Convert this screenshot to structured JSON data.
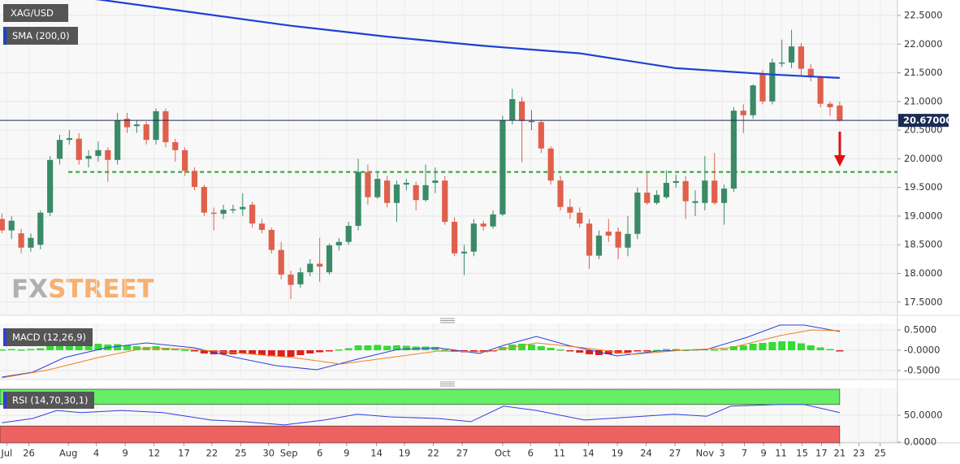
{
  "chart_data": [
    {
      "type": "candlestick",
      "title": "XAG/USD",
      "up_color": "#3a8a68",
      "down_color": "#e0604c",
      "open": [
        18.95,
        18.75,
        18.7,
        18.45,
        18.5,
        19.06,
        20.0,
        20.33,
        20.35,
        20.0,
        20.05,
        20.15,
        19.98,
        20.7,
        20.57,
        20.6,
        20.33,
        20.83,
        20.29,
        20.15,
        19.79,
        19.51,
        19.06,
        19.04,
        19.1,
        19.12,
        19.2,
        18.87,
        18.76,
        18.41,
        17.98,
        17.81,
        18.02,
        18.17,
        18.02,
        18.49,
        18.55,
        18.83,
        19.77,
        19.33,
        19.62,
        19.23,
        19.55,
        19.54,
        19.28,
        19.58,
        19.62,
        18.9,
        18.35,
        18.38,
        18.87,
        18.82,
        19.03,
        20.67,
        21.0,
        20.64,
        20.64,
        20.18,
        19.62,
        19.16,
        19.06,
        18.87,
        18.31,
        18.73,
        18.73,
        18.45,
        18.69,
        19.41,
        19.23,
        19.33,
        19.58,
        19.61,
        19.23,
        19.23,
        19.62,
        19.23,
        19.48,
        20.84,
        20.76,
        21.49,
        21.0,
        21.66,
        21.68,
        21.96,
        21.57,
        21.42,
        20.96,
        20.93
      ],
      "high": [
        19.05,
        19.0,
        18.78,
        18.7,
        19.1,
        20.05,
        20.42,
        20.5,
        20.45,
        20.15,
        20.3,
        20.2,
        20.8,
        20.8,
        20.68,
        20.65,
        20.88,
        20.88,
        20.35,
        20.2,
        19.85,
        19.55,
        19.15,
        19.2,
        19.2,
        19.4,
        19.25,
        18.95,
        18.8,
        18.55,
        18.05,
        18.1,
        18.25,
        18.62,
        18.52,
        18.62,
        18.9,
        20.0,
        19.9,
        19.75,
        19.7,
        19.62,
        19.65,
        19.6,
        19.9,
        19.85,
        19.7,
        18.98,
        18.5,
        18.95,
        18.92,
        19.1,
        20.75,
        21.22,
        21.08,
        20.85,
        20.68,
        20.22,
        19.7,
        19.3,
        19.15,
        18.95,
        18.75,
        18.95,
        18.8,
        19.0,
        19.5,
        19.75,
        19.45,
        19.8,
        19.72,
        19.7,
        19.45,
        20.05,
        20.1,
        19.55,
        20.9,
        20.95,
        21.3,
        21.55,
        21.75,
        22.08,
        22.25,
        22.02,
        21.65,
        21.45,
        21.0,
        21.0
      ],
      "low": [
        18.7,
        18.6,
        18.35,
        18.38,
        18.42,
        19.0,
        19.9,
        20.25,
        19.9,
        19.85,
        19.95,
        19.6,
        19.9,
        20.45,
        20.45,
        20.25,
        20.25,
        20.2,
        19.95,
        19.7,
        19.45,
        19.0,
        18.75,
        18.95,
        19.05,
        19.0,
        18.8,
        18.7,
        18.35,
        17.9,
        17.55,
        17.75,
        17.95,
        17.85,
        17.98,
        18.4,
        18.5,
        18.75,
        19.2,
        19.3,
        19.15,
        18.9,
        19.45,
        19.1,
        19.25,
        19.4,
        18.85,
        18.3,
        17.97,
        18.3,
        18.75,
        18.78,
        19.0,
        20.6,
        19.94,
        20.5,
        20.1,
        19.55,
        19.1,
        18.95,
        18.8,
        18.08,
        18.25,
        18.55,
        18.25,
        18.3,
        18.6,
        19.2,
        19.2,
        19.3,
        19.5,
        18.95,
        19.0,
        19.1,
        19.2,
        18.85,
        19.42,
        20.45,
        20.7,
        20.95,
        20.95,
        21.6,
        21.58,
        21.45,
        21.35,
        20.9,
        20.75,
        20.65
      ],
      "close": [
        18.75,
        18.92,
        18.45,
        18.62,
        19.06,
        19.98,
        20.33,
        20.36,
        19.98,
        20.05,
        20.15,
        19.98,
        20.67,
        20.55,
        20.6,
        20.33,
        20.83,
        20.29,
        20.15,
        19.79,
        19.51,
        19.06,
        19.04,
        19.11,
        19.12,
        19.16,
        18.87,
        18.76,
        18.41,
        17.98,
        17.8,
        18.02,
        18.17,
        18.12,
        18.49,
        18.55,
        18.83,
        19.77,
        19.33,
        19.65,
        19.23,
        19.55,
        19.58,
        19.28,
        19.54,
        19.62,
        18.9,
        18.35,
        18.38,
        18.87,
        18.82,
        19.03,
        20.67,
        21.04,
        20.66,
        20.66,
        20.18,
        19.62,
        19.16,
        19.06,
        18.87,
        18.31,
        18.66,
        18.66,
        18.45,
        18.69,
        19.41,
        19.23,
        19.37,
        19.58,
        19.61,
        19.26,
        19.26,
        19.62,
        19.23,
        19.48,
        20.84,
        20.76,
        21.28,
        21.0,
        21.68,
        21.68,
        21.96,
        21.57,
        21.42,
        20.96,
        20.9,
        20.67
      ],
      "lines": [
        {
          "name": "SMA (200,0)",
          "color": "#1f3fd6",
          "x": [
            0,
            10,
            20,
            30,
            40,
            50,
            60,
            70,
            80,
            87
          ],
          "values": [
            22.95,
            22.78,
            22.55,
            22.32,
            22.13,
            21.97,
            21.84,
            21.58,
            21.47,
            21.41
          ]
        }
      ],
      "hlines": [
        {
          "value": 19.77,
          "color": "#3aaa3a"
        }
      ],
      "last_price": {
        "value": 20.67,
        "label": "20.67000"
      },
      "watermark": [
        "FX",
        "STREET"
      ],
      "xlim": [
        -0.2,
        93
      ],
      "xticks": [
        {
          "value": 0.5,
          "label": "Jul"
        },
        {
          "value": 2.8,
          "label": "26"
        },
        {
          "value": 6.9,
          "label": "Aug"
        },
        {
          "value": 9.8,
          "label": "4"
        },
        {
          "value": 12.8,
          "label": "9"
        },
        {
          "value": 15.8,
          "label": "12"
        },
        {
          "value": 18.9,
          "label": "17"
        },
        {
          "value": 21.8,
          "label": "22"
        },
        {
          "value": 24.8,
          "label": "25"
        },
        {
          "value": 27.7,
          "label": "30"
        },
        {
          "value": 29.8,
          "label": "Sep"
        },
        {
          "value": 33.0,
          "label": "6"
        },
        {
          "value": 35.8,
          "label": "9"
        },
        {
          "value": 38.9,
          "label": "14"
        },
        {
          "value": 41.8,
          "label": "19"
        },
        {
          "value": 44.8,
          "label": "22"
        },
        {
          "value": 47.8,
          "label": "27"
        },
        {
          "value": 52.0,
          "label": "Oct"
        },
        {
          "value": 54.9,
          "label": "6"
        },
        {
          "value": 57.9,
          "label": "11"
        },
        {
          "value": 60.9,
          "label": "14"
        },
        {
          "value": 63.9,
          "label": "19"
        },
        {
          "value": 66.9,
          "label": "24"
        },
        {
          "value": 69.9,
          "label": "27"
        },
        {
          "value": 73.0,
          "label": "Nov"
        },
        {
          "value": 74.8,
          "label": "3"
        },
        {
          "value": 77.1,
          "label": "7"
        },
        {
          "value": 79.1,
          "label": "9"
        },
        {
          "value": 80.9,
          "label": "11"
        },
        {
          "value": 83.1,
          "label": "15"
        },
        {
          "value": 85.1,
          "label": "17"
        },
        {
          "value": 87.0,
          "label": "21"
        },
        {
          "value": 89.0,
          "label": "23"
        },
        {
          "value": 91.2,
          "label": "25"
        }
      ],
      "ylim": [
        17.27,
        22.77
      ],
      "yticks": [
        {
          "value": 17.5,
          "label": "17.5000"
        },
        {
          "value": 18.0,
          "label": "18.0000"
        },
        {
          "value": 18.5,
          "label": "18.5000"
        },
        {
          "value": 19.0,
          "label": "19.0000"
        },
        {
          "value": 19.5,
          "label": "19.5000"
        },
        {
          "value": 20.0,
          "label": "20.0000"
        },
        {
          "value": 20.5,
          "label": "20.5000"
        },
        {
          "value": 21.0,
          "label": "21.0000"
        },
        {
          "value": 21.5,
          "label": "21.5000"
        },
        {
          "value": 22.0,
          "label": "22.0000"
        },
        {
          "value": 22.5,
          "label": "22.5000"
        }
      ]
    },
    {
      "type": "macd",
      "title": "MACD (12,26,9)",
      "pos_color": "#33dd33",
      "neg_color": "#dd2020",
      "histogram": [
        0.02,
        0.03,
        0.02,
        0.03,
        0.05,
        0.1,
        0.15,
        0.18,
        0.18,
        0.17,
        0.16,
        0.14,
        0.15,
        0.12,
        0.1,
        0.08,
        0.1,
        0.06,
        0.03,
        0.01,
        -0.03,
        -0.08,
        -0.1,
        -0.1,
        -0.1,
        -0.08,
        -0.1,
        -0.12,
        -0.15,
        -0.16,
        -0.16,
        -0.12,
        -0.08,
        -0.05,
        -0.02,
        0.02,
        0.05,
        0.12,
        0.12,
        0.13,
        0.11,
        0.12,
        0.11,
        0.09,
        0.09,
        0.08,
        0.02,
        -0.04,
        -0.05,
        -0.04,
        -0.04,
        -0.03,
        0.08,
        0.14,
        0.16,
        0.14,
        0.1,
        0.06,
        0.02,
        -0.02,
        -0.06,
        -0.1,
        -0.12,
        -0.1,
        -0.08,
        -0.06,
        -0.02,
        -0.01,
        0.01,
        0.03,
        0.03,
        0.01,
        0.02,
        0.03,
        0.02,
        0.03,
        0.1,
        0.12,
        0.16,
        0.18,
        0.2,
        0.22,
        0.22,
        0.17,
        0.12,
        0.07,
        0.03,
        -0.02
      ],
      "lines": [
        {
          "color": "#2f3fdc",
          "x": [
            0,
            3.2,
            6.5,
            10.8,
            15,
            20,
            24.3,
            28.5,
            32.7,
            36.9,
            41.1,
            45.3,
            49.6,
            52.1,
            55.5,
            58.8,
            63.9,
            68.1,
            73.2,
            77.4,
            80.8,
            83.3,
            87
          ],
          "values": [
            -0.66,
            -0.54,
            -0.18,
            0.06,
            0.18,
            0.06,
            -0.18,
            -0.38,
            -0.48,
            -0.22,
            0.02,
            0.06,
            -0.08,
            0.12,
            0.34,
            0.12,
            -0.14,
            -0.02,
            0.02,
            0.32,
            0.62,
            0.62,
            0.46
          ]
        },
        {
          "color": "#f08020",
          "x": [
            0,
            4.9,
            10,
            15,
            20,
            25.1,
            30.2,
            35.2,
            40.3,
            45.3,
            50.4,
            55.5,
            60.5,
            65.6,
            70.6,
            75.7,
            80.8,
            84.1,
            87
          ],
          "values": [
            -0.68,
            -0.48,
            -0.18,
            0.06,
            0.02,
            -0.08,
            -0.18,
            -0.34,
            -0.18,
            -0.02,
            -0.04,
            0.18,
            0.06,
            -0.1,
            0,
            0.06,
            0.36,
            0.5,
            0.48
          ]
        }
      ],
      "ylim": [
        -0.72,
        0.66
      ],
      "yticks": [
        {
          "value": -0.5,
          "label": "-0.5000"
        },
        {
          "value": 0,
          "label": "-0.0000"
        },
        {
          "value": 0.5,
          "label": "0.5000"
        }
      ]
    },
    {
      "type": "rsi",
      "title": "RSI (14,70,30,1)",
      "overbought": 70,
      "oversold": 30,
      "overbought_color": "#66ee66",
      "oversold_color": "#ee6262",
      "lines": [
        {
          "color": "#2f3fdc",
          "x": [
            0,
            3.2,
            5.7,
            8.2,
            12.5,
            16.7,
            21.7,
            25.1,
            29.3,
            33.5,
            36.9,
            40.3,
            45.3,
            48.7,
            52.1,
            55.5,
            60.5,
            65.6,
            69.8,
            73.2,
            75.7,
            80.8,
            83.3,
            87
          ],
          "values": [
            36,
            44,
            59,
            55,
            59,
            55,
            41,
            38,
            32,
            41,
            52,
            47,
            44,
            38,
            67,
            59,
            41,
            47,
            52,
            48,
            67,
            70,
            70,
            55
          ]
        }
      ],
      "ylim": [
        -1.5,
        101.5
      ],
      "yticks": [
        {
          "value": 0,
          "label": "0.0000"
        },
        {
          "value": 50,
          "label": "50.0000"
        }
      ]
    }
  ]
}
